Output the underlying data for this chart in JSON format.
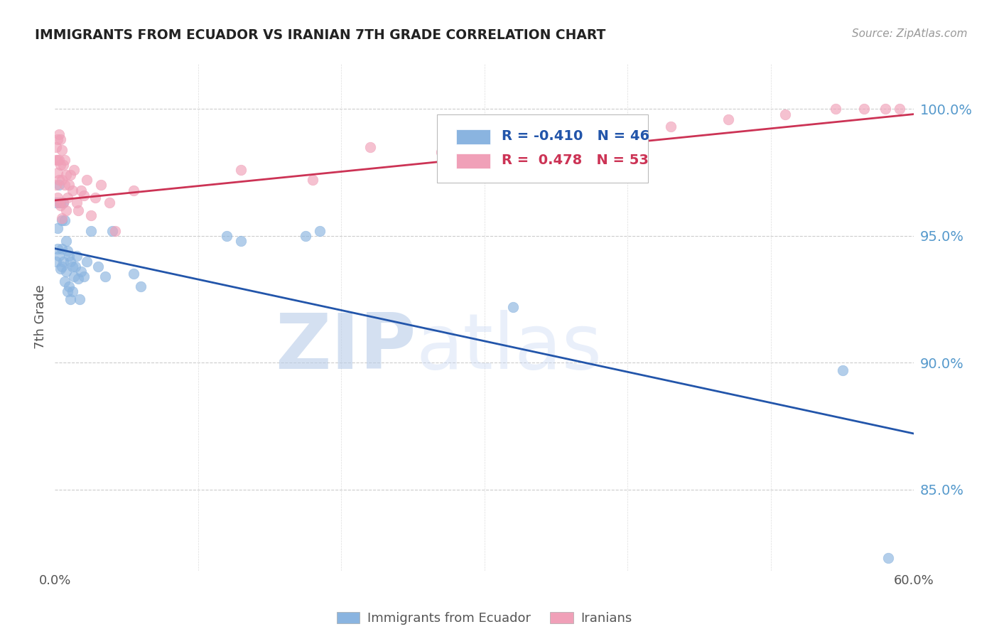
{
  "title": "IMMIGRANTS FROM ECUADOR VS IRANIAN 7TH GRADE CORRELATION CHART",
  "source": "Source: ZipAtlas.com",
  "ylabel": "7th Grade",
  "ytick_values": [
    0.85,
    0.9,
    0.95,
    1.0
  ],
  "xmin": 0.0,
  "xmax": 0.6,
  "ymin": 0.818,
  "ymax": 1.018,
  "legend_R_blue": "-0.410",
  "legend_N_blue": "46",
  "legend_R_pink": "0.478",
  "legend_N_pink": "53",
  "blue_color": "#8ab4e0",
  "pink_color": "#f0a0b8",
  "blue_line_color": "#2255aa",
  "pink_line_color": "#cc3355",
  "watermark_zip_color": "#b8cce8",
  "watermark_atlas_color": "#c8d8f0",
  "blue_scatter_x": [
    0.001,
    0.001,
    0.002,
    0.002,
    0.003,
    0.003,
    0.004,
    0.004,
    0.005,
    0.005,
    0.005,
    0.006,
    0.006,
    0.007,
    0.007,
    0.008,
    0.008,
    0.009,
    0.009,
    0.01,
    0.01,
    0.011,
    0.011,
    0.012,
    0.012,
    0.013,
    0.014,
    0.015,
    0.016,
    0.017,
    0.018,
    0.02,
    0.022,
    0.025,
    0.03,
    0.035,
    0.04,
    0.055,
    0.06,
    0.12,
    0.13,
    0.175,
    0.185,
    0.32,
    0.55,
    0.582
  ],
  "blue_scatter_y": [
    0.963,
    0.94,
    0.953,
    0.945,
    0.97,
    0.942,
    0.963,
    0.937,
    0.956,
    0.945,
    0.938,
    0.963,
    0.94,
    0.956,
    0.932,
    0.948,
    0.936,
    0.944,
    0.928,
    0.942,
    0.93,
    0.94,
    0.925,
    0.938,
    0.928,
    0.934,
    0.938,
    0.942,
    0.933,
    0.925,
    0.936,
    0.934,
    0.94,
    0.952,
    0.938,
    0.934,
    0.952,
    0.935,
    0.93,
    0.95,
    0.948,
    0.95,
    0.952,
    0.922,
    0.897,
    0.823
  ],
  "pink_scatter_x": [
    0.001,
    0.001,
    0.001,
    0.002,
    0.002,
    0.002,
    0.002,
    0.003,
    0.003,
    0.003,
    0.003,
    0.004,
    0.004,
    0.004,
    0.005,
    0.005,
    0.005,
    0.006,
    0.006,
    0.007,
    0.007,
    0.008,
    0.008,
    0.009,
    0.01,
    0.011,
    0.012,
    0.013,
    0.015,
    0.016,
    0.018,
    0.02,
    0.022,
    0.025,
    0.028,
    0.032,
    0.038,
    0.042,
    0.055,
    0.13,
    0.18,
    0.22,
    0.27,
    0.31,
    0.35,
    0.395,
    0.43,
    0.47,
    0.51,
    0.545,
    0.565,
    0.58,
    0.59
  ],
  "pink_scatter_y": [
    0.985,
    0.98,
    0.97,
    0.988,
    0.98,
    0.975,
    0.965,
    0.99,
    0.98,
    0.972,
    0.963,
    0.988,
    0.978,
    0.962,
    0.984,
    0.972,
    0.957,
    0.978,
    0.963,
    0.98,
    0.97,
    0.974,
    0.96,
    0.965,
    0.97,
    0.974,
    0.968,
    0.976,
    0.963,
    0.96,
    0.968,
    0.966,
    0.972,
    0.958,
    0.965,
    0.97,
    0.963,
    0.952,
    0.968,
    0.976,
    0.972,
    0.985,
    0.983,
    0.985,
    0.988,
    0.99,
    0.993,
    0.996,
    0.998,
    1.0,
    1.0,
    1.0,
    1.0
  ],
  "blue_trendline_x": [
    0.0,
    0.6
  ],
  "blue_trendline_y": [
    0.945,
    0.872
  ],
  "pink_trendline_x": [
    0.0,
    0.6
  ],
  "pink_trendline_y": [
    0.964,
    0.998
  ]
}
